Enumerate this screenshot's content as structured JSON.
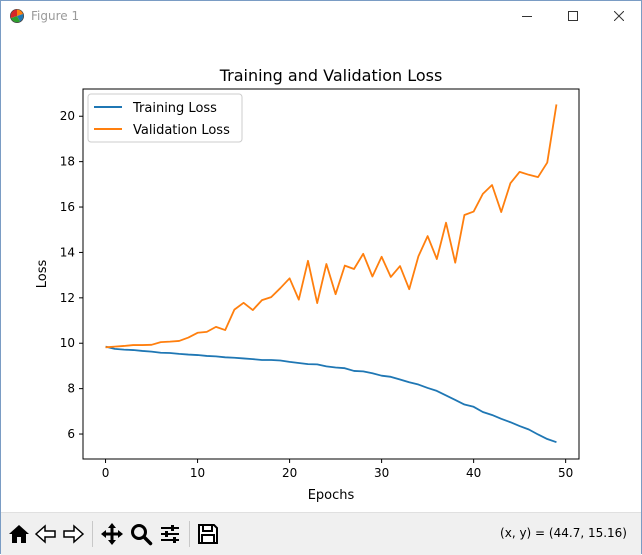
{
  "window": {
    "title": "Figure 1"
  },
  "toolbar": {
    "coordinates": "(x, y) = (44.7, 15.16)",
    "icons": [
      "home-icon",
      "back-arrow-icon",
      "forward-arrow-icon",
      "pan-icon",
      "zoom-icon",
      "subplots-icon",
      "save-icon"
    ]
  },
  "chart_data": {
    "type": "line",
    "title": "Training and Validation Loss",
    "xlabel": "Epochs",
    "ylabel": "Loss",
    "xlim": [
      -2.45,
      51.45
    ],
    "ylim": [
      4.9,
      21.2
    ],
    "xticks": [
      0,
      10,
      20,
      30,
      40,
      50
    ],
    "yticks": [
      6,
      8,
      10,
      12,
      14,
      16,
      18,
      20
    ],
    "grid": false,
    "legend_position": "top-left",
    "x": [
      0,
      1,
      2,
      3,
      4,
      5,
      6,
      7,
      8,
      9,
      10,
      11,
      12,
      13,
      14,
      15,
      16,
      17,
      18,
      19,
      20,
      21,
      22,
      23,
      24,
      25,
      26,
      27,
      28,
      29,
      30,
      31,
      32,
      33,
      34,
      35,
      36,
      37,
      38,
      39,
      40,
      41,
      42,
      43,
      44,
      45,
      46,
      47,
      48,
      49
    ],
    "series": [
      {
        "name": "Training Loss",
        "color": "#1f77b4",
        "values": [
          9.85,
          9.75,
          9.72,
          9.7,
          9.66,
          9.63,
          9.58,
          9.57,
          9.53,
          9.5,
          9.48,
          9.44,
          9.42,
          9.38,
          9.36,
          9.33,
          9.3,
          9.26,
          9.26,
          9.24,
          9.18,
          9.13,
          9.08,
          9.07,
          8.98,
          8.93,
          8.9,
          8.78,
          8.76,
          8.68,
          8.57,
          8.52,
          8.4,
          8.28,
          8.18,
          8.03,
          7.9,
          7.7,
          7.5,
          7.3,
          7.2,
          6.97,
          6.84,
          6.67,
          6.52,
          6.35,
          6.2,
          5.98,
          5.78,
          5.64
        ]
      },
      {
        "name": "Validation Loss",
        "color": "#ff7f0e",
        "values": [
          9.82,
          9.85,
          9.88,
          9.92,
          9.92,
          9.93,
          10.05,
          10.07,
          10.1,
          10.25,
          10.46,
          10.5,
          10.72,
          10.58,
          11.48,
          11.78,
          11.46,
          11.9,
          12.03,
          12.43,
          12.86,
          11.92,
          13.63,
          11.77,
          13.49,
          12.16,
          13.42,
          13.27,
          13.94,
          12.94,
          13.81,
          12.92,
          13.4,
          12.38,
          13.83,
          14.72,
          13.71,
          15.31,
          13.55,
          15.65,
          15.8,
          16.58,
          16.97,
          15.78,
          17.05,
          17.55,
          17.42,
          17.32,
          17.96,
          20.52
        ]
      }
    ]
  }
}
